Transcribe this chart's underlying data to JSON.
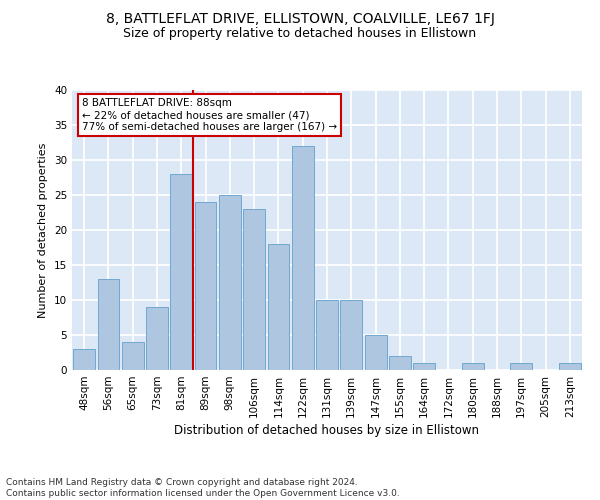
{
  "title1": "8, BATTLEFLAT DRIVE, ELLISTOWN, COALVILLE, LE67 1FJ",
  "title2": "Size of property relative to detached houses in Ellistown",
  "xlabel": "Distribution of detached houses by size in Ellistown",
  "ylabel": "Number of detached properties",
  "categories": [
    "48sqm",
    "56sqm",
    "65sqm",
    "73sqm",
    "81sqm",
    "89sqm",
    "98sqm",
    "106sqm",
    "114sqm",
    "122sqm",
    "131sqm",
    "139sqm",
    "147sqm",
    "155sqm",
    "164sqm",
    "172sqm",
    "180sqm",
    "188sqm",
    "197sqm",
    "205sqm",
    "213sqm"
  ],
  "values": [
    3,
    13,
    4,
    9,
    28,
    24,
    25,
    23,
    18,
    32,
    10,
    10,
    5,
    2,
    1,
    0,
    1,
    0,
    1,
    0,
    1
  ],
  "bar_color": "#aec6e0",
  "bar_edge_color": "#6fa8d0",
  "vline_x": 4.5,
  "vline_color": "#cc0000",
  "annotation_line1": "8 BATTLEFLAT DRIVE: 88sqm",
  "annotation_line2": "← 22% of detached houses are smaller (47)",
  "annotation_line3": "77% of semi-detached houses are larger (167) →",
  "annotation_box_color": "#ffffff",
  "annotation_box_edge": "#cc0000",
  "footer": "Contains HM Land Registry data © Crown copyright and database right 2024.\nContains public sector information licensed under the Open Government Licence v3.0.",
  "ylim": [
    0,
    40
  ],
  "yticks": [
    0,
    5,
    10,
    15,
    20,
    25,
    30,
    35,
    40
  ],
  "background_color": "#dce8f5",
  "grid_color": "#ffffff",
  "title1_fontsize": 10,
  "title2_fontsize": 9,
  "xlabel_fontsize": 8.5,
  "ylabel_fontsize": 8,
  "tick_fontsize": 7.5,
  "footer_fontsize": 6.5,
  "annot_fontsize": 7.5
}
